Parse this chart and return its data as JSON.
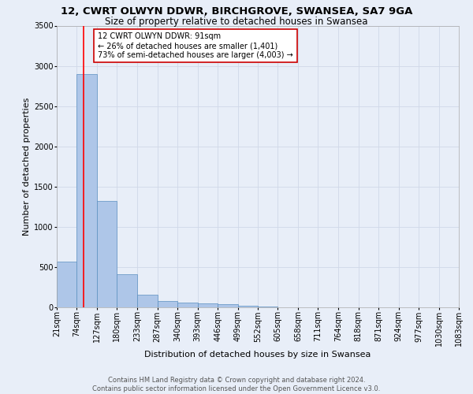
{
  "title1": "12, CWRT OLWYN DDWR, BIRCHGROVE, SWANSEA, SA7 9GA",
  "title2": "Size of property relative to detached houses in Swansea",
  "xlabel": "Distribution of detached houses by size in Swansea",
  "ylabel": "Number of detached properties",
  "bin_edges": [
    21,
    74,
    127,
    180,
    233,
    287,
    340,
    393,
    446,
    499,
    552,
    605,
    658,
    711,
    764,
    818,
    871,
    924,
    977,
    1030,
    1083
  ],
  "bar_heights": [
    570,
    2900,
    1320,
    410,
    160,
    80,
    55,
    50,
    40,
    20,
    8,
    4,
    2,
    1,
    1,
    0,
    0,
    0,
    0,
    0
  ],
  "bar_color": "#aec6e8",
  "bar_edge_color": "#5a8fc0",
  "grid_color": "#d0d8e8",
  "background_color": "#e8eef8",
  "red_line_x": 91,
  "annotation_text": "12 CWRT OLWYN DDWR: 91sqm\n← 26% of detached houses are smaller (1,401)\n73% of semi-detached houses are larger (4,003) →",
  "annotation_box_color": "#ffffff",
  "annotation_edge_color": "#cc0000",
  "footer_text": "Contains HM Land Registry data © Crown copyright and database right 2024.\nContains public sector information licensed under the Open Government Licence v3.0.",
  "ylim": [
    0,
    3500
  ],
  "yticks": [
    0,
    500,
    1000,
    1500,
    2000,
    2500,
    3000,
    3500
  ],
  "title1_fontsize": 9.5,
  "title2_fontsize": 8.5,
  "xlabel_fontsize": 8,
  "ylabel_fontsize": 8,
  "tick_fontsize": 7,
  "annotation_fontsize": 7,
  "footer_fontsize": 6
}
